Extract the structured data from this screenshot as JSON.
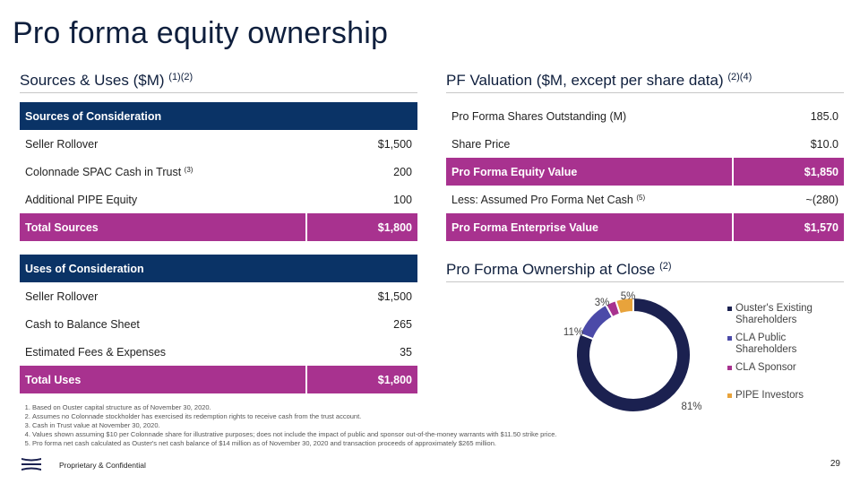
{
  "title": "Pro forma equity ownership",
  "sources_uses": {
    "heading": "Sources & Uses ($M)",
    "heading_sup": "(1)(2)",
    "sources": {
      "header": "Sources of Consideration",
      "rows": [
        {
          "label": "Seller Rollover",
          "sup": "",
          "value": "$1,500"
        },
        {
          "label": "Colonnade SPAC Cash in Trust",
          "sup": "(3)",
          "value": "200"
        },
        {
          "label": "Additional PIPE Equity",
          "sup": "",
          "value": "100"
        }
      ],
      "total_label": "Total Sources",
      "total_value": "$1,800"
    },
    "uses": {
      "header": "Uses of Consideration",
      "rows": [
        {
          "label": "Seller Rollover",
          "value": "$1,500"
        },
        {
          "label": "Cash to Balance Sheet",
          "value": "265"
        },
        {
          "label": "Estimated Fees & Expenses",
          "value": "35"
        }
      ],
      "total_label": "Total Uses",
      "total_value": "$1,800"
    }
  },
  "valuation": {
    "heading": "PF Valuation ($M, except per share data)",
    "heading_sup": "(2)(4)",
    "rows": [
      {
        "label": "Pro Forma Shares Outstanding (M)",
        "sup": "",
        "value": "185.0"
      },
      {
        "label": "Share Price",
        "sup": "",
        "value": "$10.0"
      },
      {
        "label": "Pro Forma Equity Value",
        "sup": "",
        "value": "$1,850"
      },
      {
        "label": "Less: Assumed Pro Forma Net Cash",
        "sup": "(5)",
        "value": "~(280)"
      },
      {
        "label": "Pro Forma Enterprise Value",
        "sup": "",
        "value": "$1,570"
      }
    ]
  },
  "ownership": {
    "heading": "Pro Forma Ownership at Close",
    "heading_sup": "(2)"
  },
  "chart_data": {
    "type": "pie",
    "subtype": "donut",
    "title": "Pro Forma Ownership at Close",
    "categories": [
      "Ouster's Existing Shareholders",
      "CLA Public Shareholders",
      "CLA Sponsor",
      "PIPE Investors"
    ],
    "values": [
      81,
      11,
      3,
      5
    ],
    "labels": [
      "81%",
      "11%",
      "3%",
      "5%"
    ],
    "colors": [
      "#1b2150",
      "#4b4aa8",
      "#a8328f",
      "#e8a33b"
    ],
    "legend_position": "right"
  },
  "footnotes": [
    "Based on Ouster capital structure as of November 30, 2020.",
    "Assumes no Colonnade stockholder has exercised its redemption rights to receive cash from the trust account.",
    "Cash in Trust value at November 30, 2020.",
    "Values shown assuming $10 per Colonnade share for illustrative purposes; does not include the impact of public and sponsor out-of-the-money warrants with $11.50 strike price.",
    "Pro forma net cash calculated as Ouster's net cash balance of $14 million as of November 30, 2020 and transaction proceeds of approximately $265 million."
  ],
  "footer": {
    "confidential": "Proprietary  & Confidential",
    "page": "29"
  },
  "colors": {
    "navy": "#0a3366",
    "magenta": "#a8328f"
  }
}
